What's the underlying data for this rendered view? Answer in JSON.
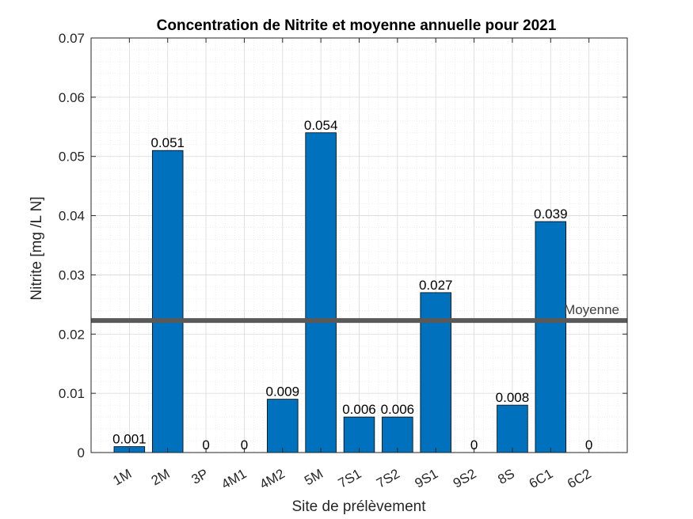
{
  "chart_data": {
    "type": "bar",
    "title": "Concentration de Nitrite et moyenne annuelle pour 2021",
    "xlabel": "Site de prélèvement",
    "ylabel": "Nitrite [mg /L N]",
    "categories": [
      "1M",
      "2M",
      "3P",
      "4M1",
      "4M2",
      "5M",
      "7S1",
      "7S2",
      "9S1",
      "9S2",
      "8S",
      "6C1",
      "6C2"
    ],
    "values": [
      0.001,
      0.051,
      0,
      0,
      0.009,
      0.054,
      0.006,
      0.006,
      0.027,
      0,
      0.008,
      0.039,
      0
    ],
    "data_labels": [
      "0.001",
      "0.051",
      "0",
      "0",
      "0.009",
      "0.054",
      "0.006",
      "0.006",
      "0.027",
      "0",
      "0.008",
      "0.039",
      "0"
    ],
    "ylim": [
      0,
      0.07
    ],
    "yticks": [
      0,
      0.01,
      0.02,
      0.03,
      0.04,
      0.05,
      0.06,
      0.07
    ],
    "ytick_labels": [
      "0",
      "0.01",
      "0.02",
      "0.03",
      "0.04",
      "0.05",
      "0.06",
      "0.07"
    ],
    "reference_line": {
      "label": "Moyenne",
      "value": 0.0223
    },
    "grid": true,
    "minor_grid": true,
    "colors": {
      "bar": "#0072BD",
      "reference": "#595959"
    }
  }
}
